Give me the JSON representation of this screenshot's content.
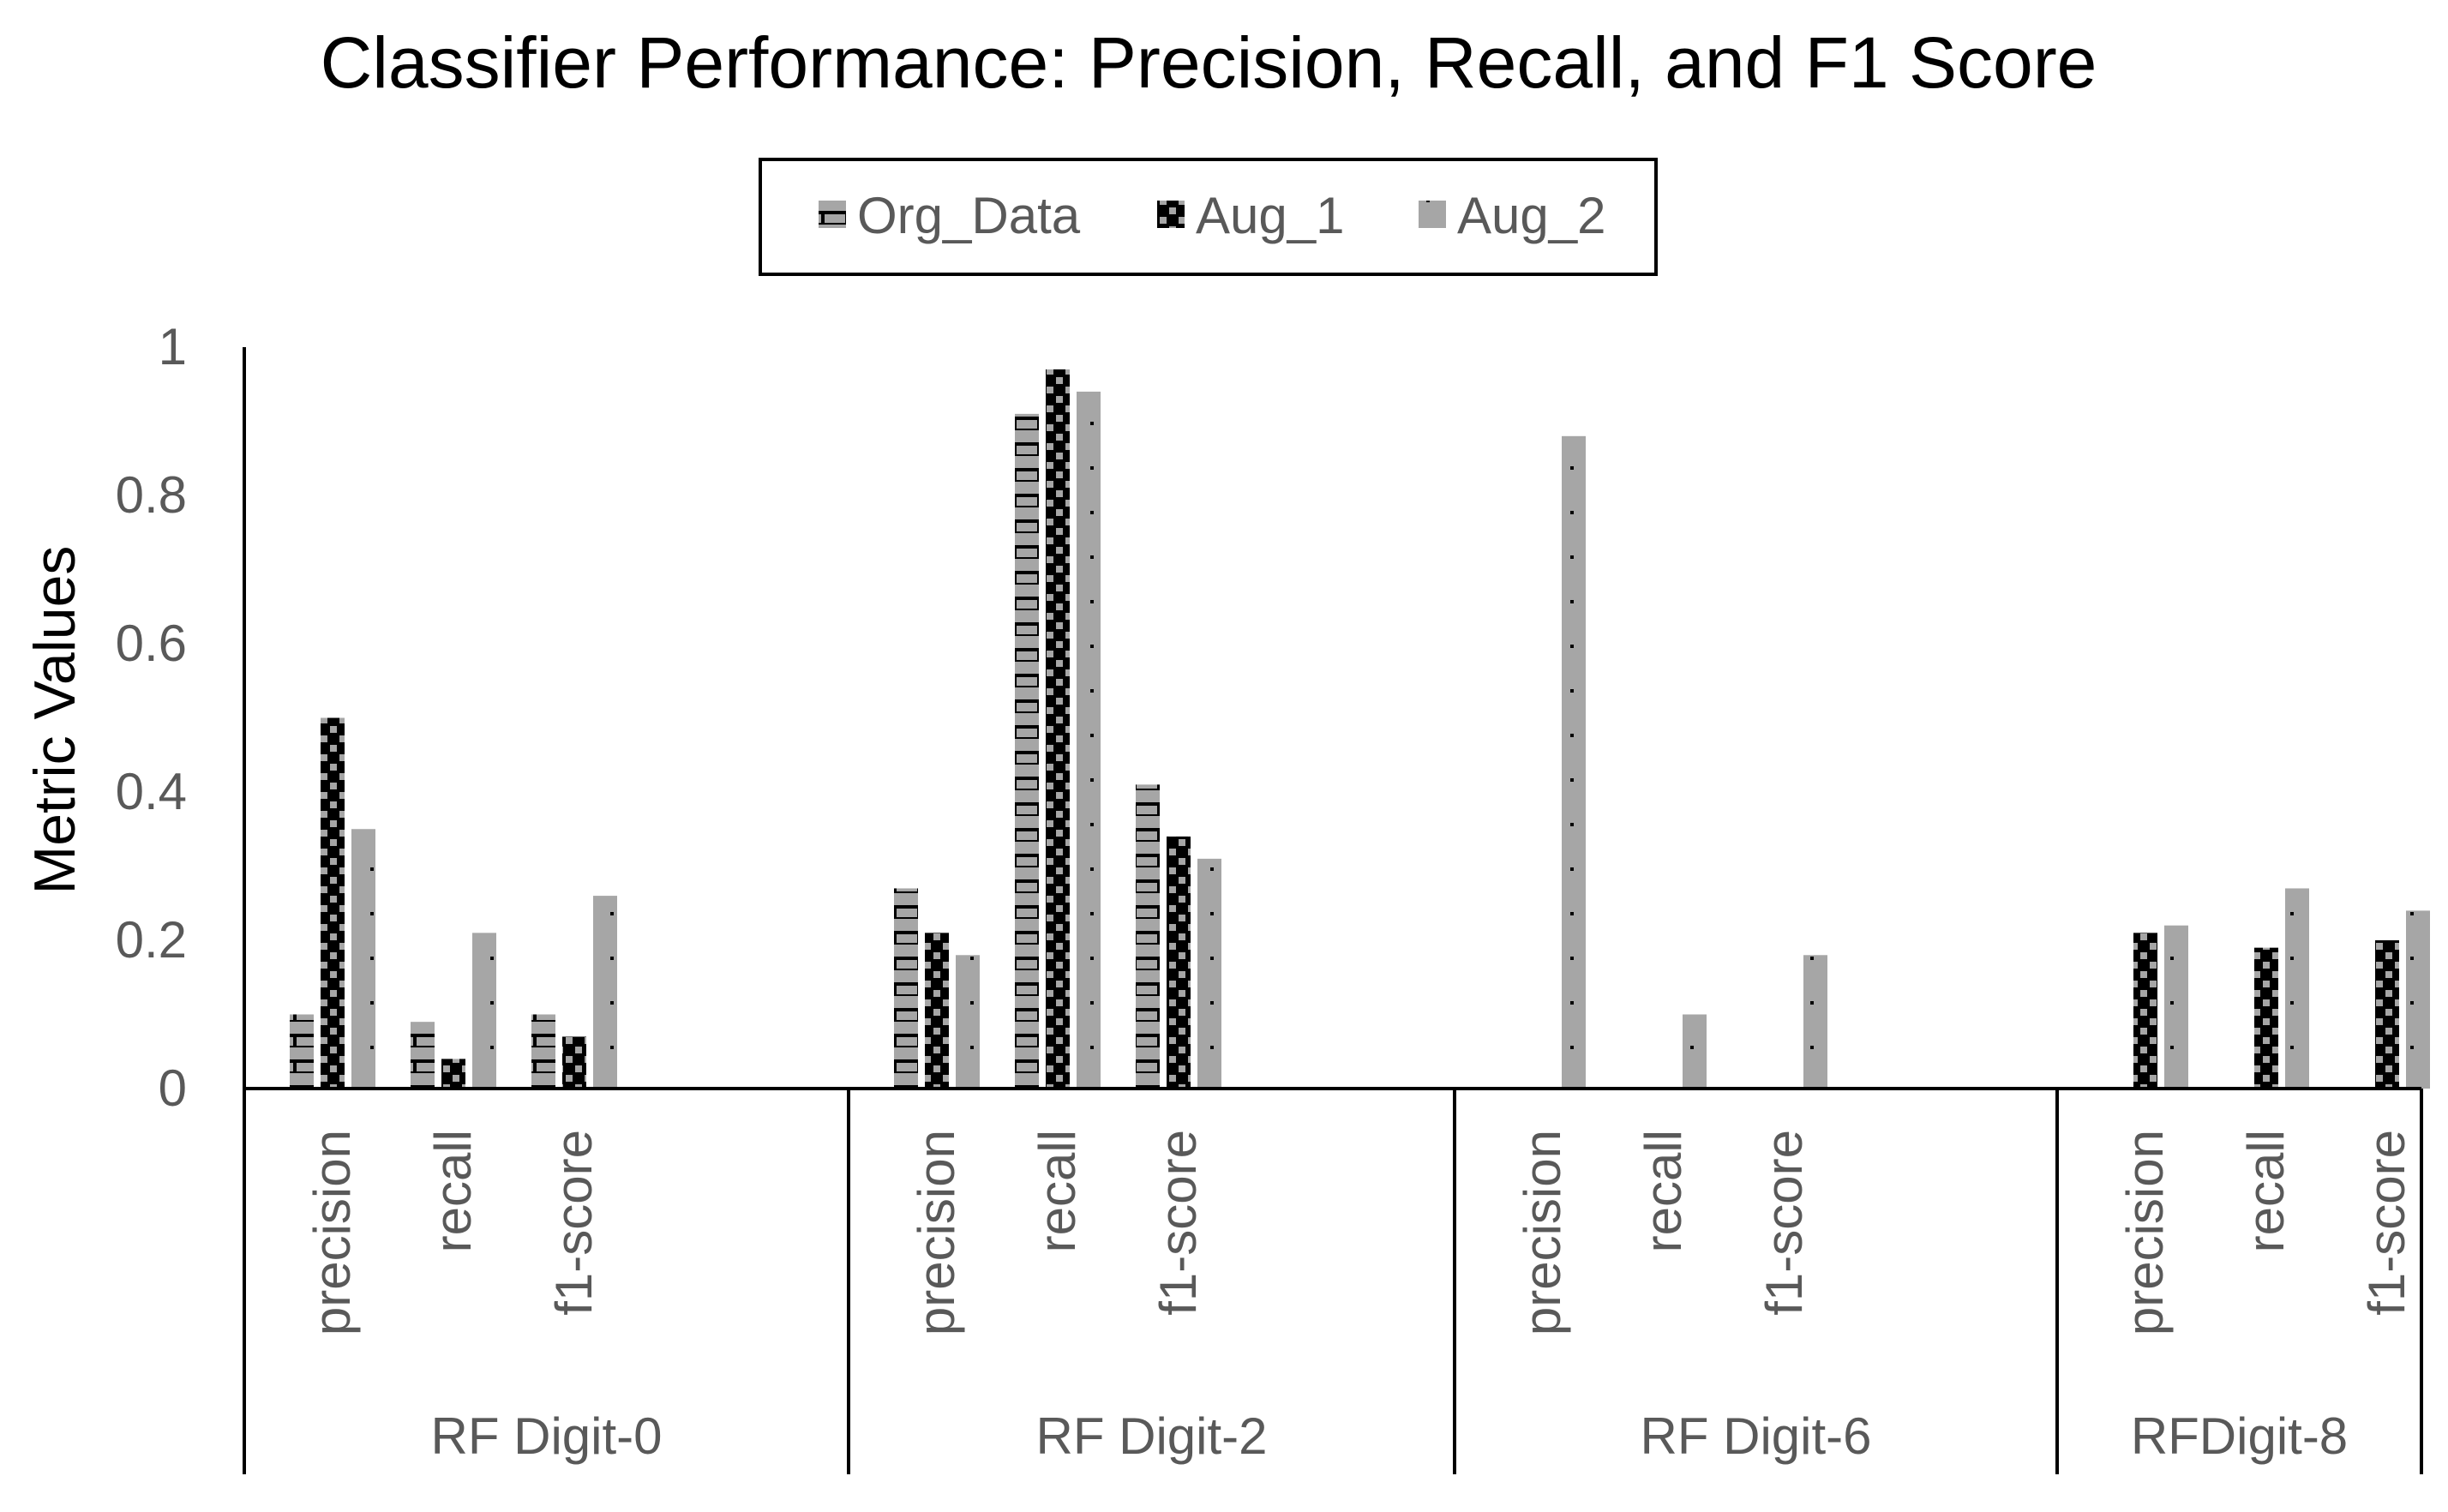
{
  "chart_data": {
    "type": "bar",
    "title": "Classifier Performance: Precision, Recall, and F1 Score",
    "xlabel": "",
    "ylabel": "Metric Values",
    "ylim": [
      0,
      1
    ],
    "yticks": [
      0,
      0.2,
      0.4,
      0.6,
      0.8,
      1
    ],
    "ytick_labels": [
      "0",
      "0.2",
      "0.4",
      "0.6",
      "0.8",
      "1"
    ],
    "grid": false,
    "legend_position": "top-center",
    "groups": [
      {
        "label": "RF Digit-0",
        "categories": [
          "precision",
          "recall",
          "f1-score"
        ]
      },
      {
        "label": "RF Digit-2",
        "categories": [
          "precision",
          "recall",
          "f1-score"
        ]
      },
      {
        "label": "RF Digit-6",
        "categories": [
          "precision",
          "recall",
          "f1-score"
        ]
      },
      {
        "label": "RFDigit-8",
        "categories": [
          "precision",
          "recall",
          "f1-score"
        ]
      }
    ],
    "series": [
      {
        "name": "Org_Data",
        "pattern": "h-brick",
        "color": "#a6a6a6",
        "values": [
          0.1,
          0.09,
          0.1,
          0.27,
          0.91,
          0.41,
          0,
          0,
          0,
          0,
          0,
          0
        ]
      },
      {
        "name": "Aug_1",
        "pattern": "checker",
        "color": "#a6a6a6",
        "values": [
          0.5,
          0.04,
          0.07,
          0.21,
          0.97,
          0.34,
          0,
          0,
          0,
          0.21,
          0.19,
          0.2
        ]
      },
      {
        "name": "Aug_2",
        "pattern": "dotted",
        "color": "#a6a6a6",
        "values": [
          0.35,
          0.21,
          0.26,
          0.18,
          0.94,
          0.31,
          0.88,
          0.1,
          0.18,
          0.22,
          0.27,
          0.24
        ]
      }
    ]
  },
  "colors": {
    "bar_fill": "#a6a6a6",
    "pattern_dark": "#000000",
    "axis": "#000000",
    "text_gray": "#595959"
  }
}
